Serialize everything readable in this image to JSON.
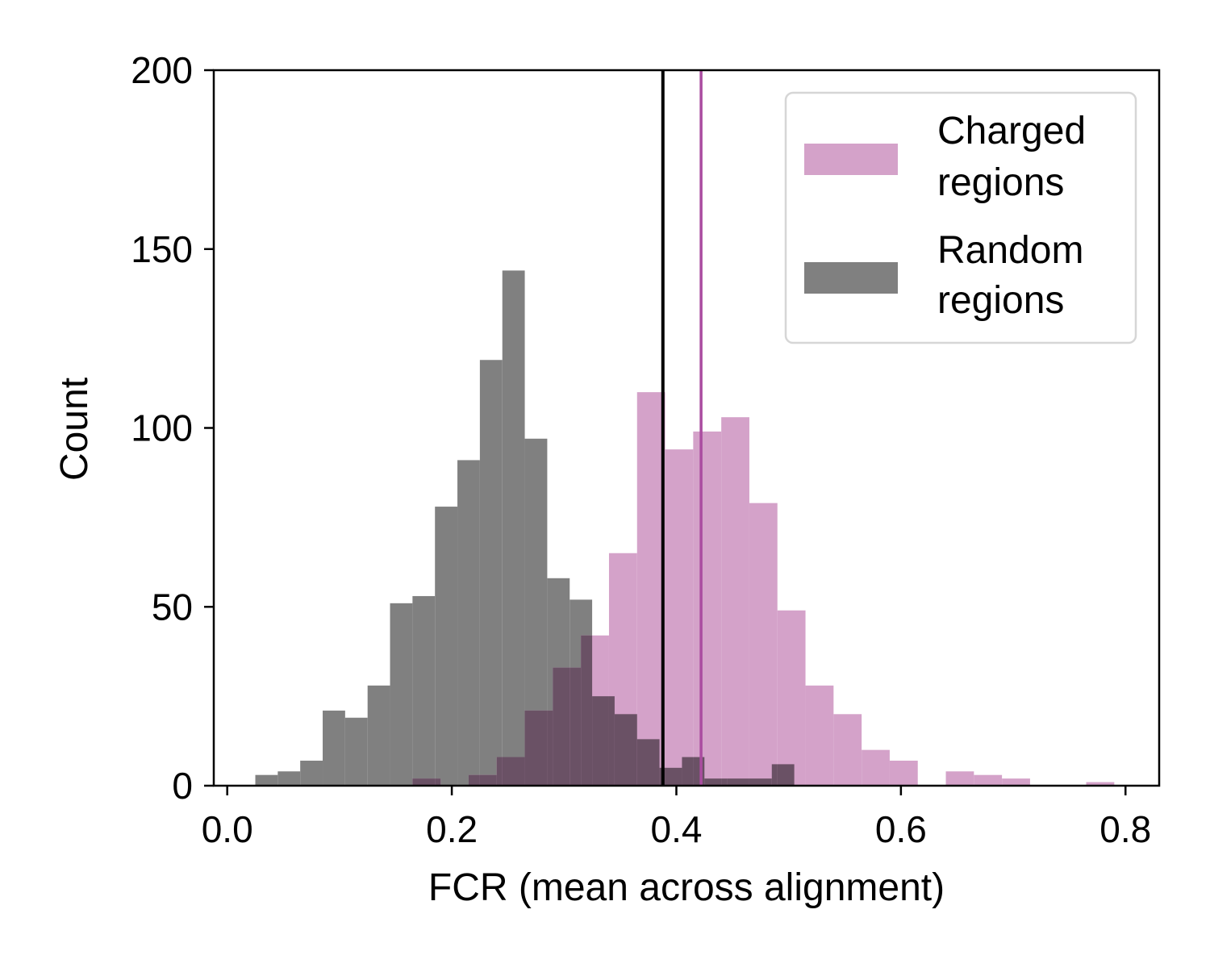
{
  "chart_data": {
    "type": "bar",
    "subtype": "overlapping-histogram",
    "xlabel": "FCR (mean across alignment)",
    "ylabel": "Count",
    "xlim": [
      -0.012,
      0.83
    ],
    "ylim": [
      0,
      200
    ],
    "xticks": [
      0.0,
      0.2,
      0.4,
      0.6,
      0.8
    ],
    "xtick_labels": [
      "0.0",
      "0.2",
      "0.4",
      "0.6",
      "0.8"
    ],
    "yticks": [
      0,
      50,
      100,
      150,
      200
    ],
    "ytick_labels": [
      "0",
      "50",
      "100",
      "150",
      "200"
    ],
    "grid": false,
    "legend_position": "top-right",
    "series": [
      {
        "name": "Charged regions",
        "color": "#d4a2c9",
        "bins": [
          {
            "x0": 0.165,
            "x1": 0.19,
            "count": 2
          },
          {
            "x0": 0.215,
            "x1": 0.24,
            "count": 3
          },
          {
            "x0": 0.24,
            "x1": 0.265,
            "count": 8
          },
          {
            "x0": 0.265,
            "x1": 0.29,
            "count": 21
          },
          {
            "x0": 0.29,
            "x1": 0.315,
            "count": 33
          },
          {
            "x0": 0.315,
            "x1": 0.34,
            "count": 42
          },
          {
            "x0": 0.34,
            "x1": 0.365,
            "count": 65
          },
          {
            "x0": 0.365,
            "x1": 0.39,
            "count": 110
          },
          {
            "x0": 0.39,
            "x1": 0.415,
            "count": 94
          },
          {
            "x0": 0.415,
            "x1": 0.44,
            "count": 99
          },
          {
            "x0": 0.44,
            "x1": 0.465,
            "count": 103
          },
          {
            "x0": 0.465,
            "x1": 0.49,
            "count": 79
          },
          {
            "x0": 0.49,
            "x1": 0.515,
            "count": 49
          },
          {
            "x0": 0.515,
            "x1": 0.54,
            "count": 28
          },
          {
            "x0": 0.54,
            "x1": 0.565,
            "count": 20
          },
          {
            "x0": 0.565,
            "x1": 0.59,
            "count": 10
          },
          {
            "x0": 0.59,
            "x1": 0.615,
            "count": 7
          },
          {
            "x0": 0.64,
            "x1": 0.665,
            "count": 4
          },
          {
            "x0": 0.665,
            "x1": 0.69,
            "count": 3
          },
          {
            "x0": 0.69,
            "x1": 0.715,
            "count": 2
          },
          {
            "x0": 0.765,
            "x1": 0.79,
            "count": 1
          }
        ]
      },
      {
        "name": "Random regions",
        "color": "#808080",
        "bins": [
          {
            "x0": 0.025,
            "x1": 0.045,
            "count": 3
          },
          {
            "x0": 0.045,
            "x1": 0.065,
            "count": 4
          },
          {
            "x0": 0.065,
            "x1": 0.085,
            "count": 7
          },
          {
            "x0": 0.085,
            "x1": 0.105,
            "count": 21
          },
          {
            "x0": 0.105,
            "x1": 0.125,
            "count": 19
          },
          {
            "x0": 0.125,
            "x1": 0.145,
            "count": 28
          },
          {
            "x0": 0.145,
            "x1": 0.165,
            "count": 51
          },
          {
            "x0": 0.165,
            "x1": 0.185,
            "count": 53
          },
          {
            "x0": 0.185,
            "x1": 0.205,
            "count": 78
          },
          {
            "x0": 0.205,
            "x1": 0.225,
            "count": 91
          },
          {
            "x0": 0.225,
            "x1": 0.245,
            "count": 119
          },
          {
            "x0": 0.245,
            "x1": 0.265,
            "count": 144
          },
          {
            "x0": 0.265,
            "x1": 0.285,
            "count": 97
          },
          {
            "x0": 0.285,
            "x1": 0.305,
            "count": 58
          },
          {
            "x0": 0.305,
            "x1": 0.325,
            "count": 52
          },
          {
            "x0": 0.325,
            "x1": 0.345,
            "count": 25
          },
          {
            "x0": 0.345,
            "x1": 0.365,
            "count": 20
          },
          {
            "x0": 0.365,
            "x1": 0.385,
            "count": 13
          },
          {
            "x0": 0.385,
            "x1": 0.405,
            "count": 5
          },
          {
            "x0": 0.405,
            "x1": 0.425,
            "count": 8
          },
          {
            "x0": 0.425,
            "x1": 0.445,
            "count": 2
          },
          {
            "x0": 0.445,
            "x1": 0.465,
            "count": 2
          },
          {
            "x0": 0.465,
            "x1": 0.485,
            "count": 2
          },
          {
            "x0": 0.485,
            "x1": 0.505,
            "count": 6
          }
        ]
      }
    ],
    "overlap_color": "#6a5165",
    "reference_lines": [
      {
        "x": 0.388,
        "color": "#000000"
      },
      {
        "x": 0.422,
        "color": "#aa4ca0"
      }
    ]
  }
}
